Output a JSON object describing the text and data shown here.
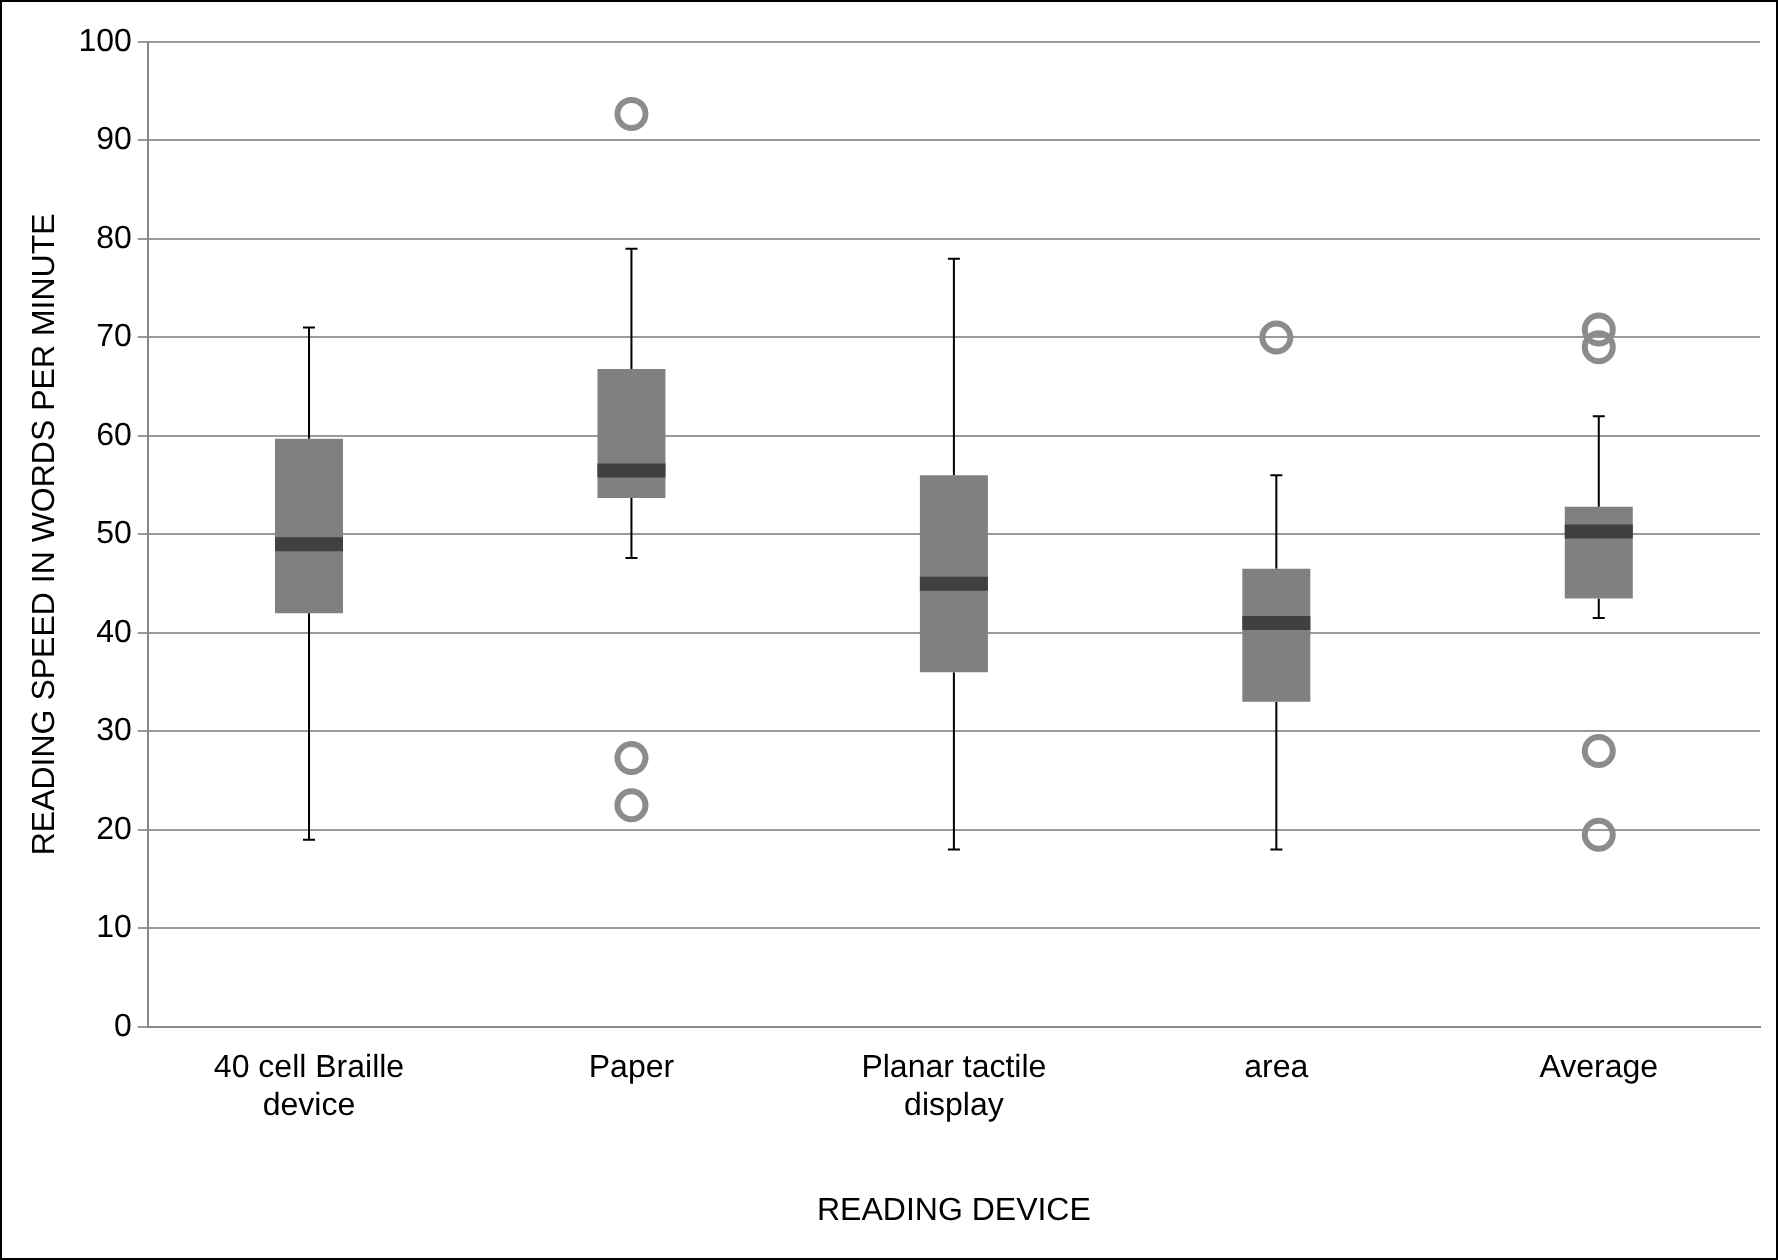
{
  "chart_data": {
    "type": "box",
    "xlabel": "READING DEVICE",
    "ylabel": "READING SPEED IN WORDS PER MINUTE",
    "categories": [
      "40 cell Braille device",
      "Paper",
      "Planar tactile display",
      "area",
      "Average"
    ],
    "color": "#808080",
    "boxes": [
      {
        "low": 19,
        "q1": 42,
        "median": 49,
        "q3": 59.7,
        "high": 71
      },
      {
        "low": 47.6,
        "q1": 53.7,
        "median": 56.5,
        "q3": 66.8,
        "high": 79,
        "outliers": [
          92.7,
          27.3,
          22.5
        ]
      },
      {
        "low": 18,
        "q1": 36,
        "median": 45,
        "q3": 56,
        "high": 78
      },
      {
        "low": 18,
        "q1": 33,
        "median": 41,
        "q3": 46.5,
        "high": 56,
        "outliers": [
          70
        ]
      },
      {
        "low": 41.5,
        "q1": 43.5,
        "median": 50.3,
        "q3": 52.8,
        "high": 62,
        "outliers": [
          70.8,
          69,
          28,
          19.5
        ]
      }
    ],
    "ylim": [
      0,
      100
    ],
    "yticks": [
      0,
      10,
      20,
      30,
      40,
      50,
      60,
      70,
      80,
      90,
      100
    ],
    "grid": "y",
    "legend": false
  }
}
